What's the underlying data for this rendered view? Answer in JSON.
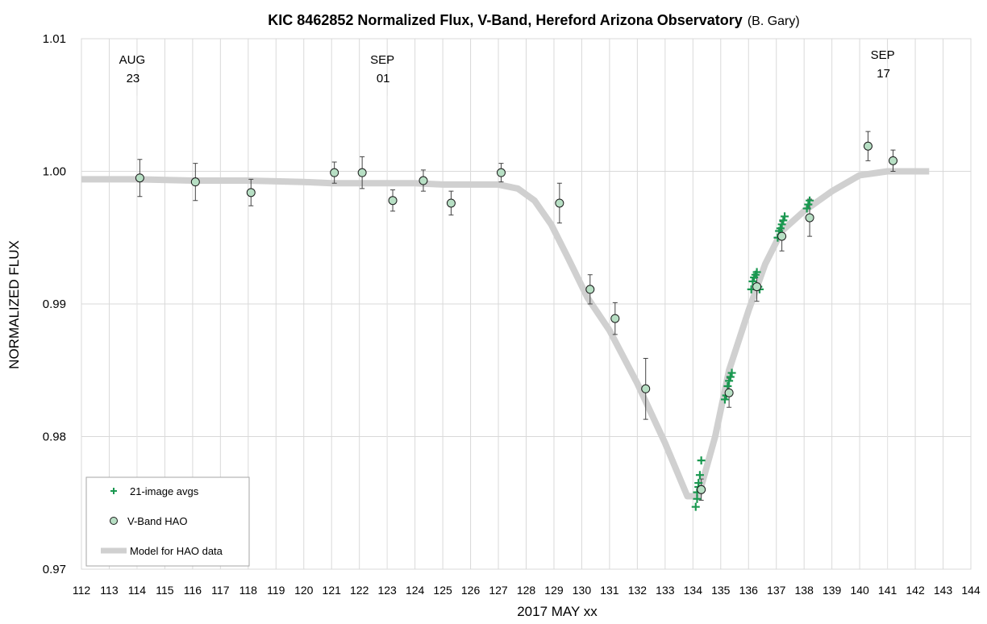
{
  "chart_data": {
    "type": "scatter",
    "title": "KIC 8462852 Normalized Flux, V-Band, Hereford Arizona Observatory",
    "title_suffix": "(B. Gary)",
    "xlabel": "2017 MAY xx",
    "ylabel": "NORMALIZED FLUX",
    "xlim": [
      112,
      144
    ],
    "ylim": [
      0.97,
      1.01
    ],
    "x_ticks": [
      "112",
      "113",
      "114",
      "115",
      "116",
      "117",
      "118",
      "119",
      "120",
      "121",
      "122",
      "123",
      "124",
      "125",
      "126",
      "127",
      "128",
      "129",
      "130",
      "131",
      "132",
      "133",
      "134",
      "135",
      "136",
      "137",
      "138",
      "139",
      "140",
      "141",
      "142",
      "143",
      "144"
    ],
    "y_ticks": [
      "0.97",
      "0.98",
      "0.99",
      "1.00",
      "1.01"
    ],
    "grid": true,
    "legend_position": "bottom-left",
    "annotations": [
      {
        "top": "AUG",
        "bottom": "23",
        "x": 114
      },
      {
        "top": "SEP",
        "bottom": "01",
        "x": 123
      },
      {
        "top": "SEP",
        "bottom": "17",
        "x": 141
      }
    ],
    "colors": {
      "model": "#d0d0d0",
      "plus": "#1a9850",
      "circle_fill": "#b7dfc4",
      "circle_stroke": "#1a1a1a",
      "grid": "#d9d9d9"
    },
    "series": [
      {
        "name": "21-image avgs",
        "kind": "plus",
        "x": [
          134.1,
          134.15,
          134.2,
          134.25,
          134.3,
          134.15,
          134.2,
          135.15,
          135.2,
          135.25,
          135.3,
          135.35,
          135.4,
          136.1,
          136.15,
          136.2,
          136.25,
          136.3,
          136.35,
          136.4,
          137.05,
          137.1,
          137.15,
          137.2,
          137.25,
          137.3,
          138.1,
          138.15,
          138.2
        ],
        "y": [
          0.9747,
          0.9753,
          0.9765,
          0.9771,
          0.9782,
          0.9758,
          0.9762,
          0.9828,
          0.9831,
          0.9838,
          0.9842,
          0.9845,
          0.9848,
          0.9911,
          0.9917,
          0.992,
          0.9922,
          0.9924,
          0.9913,
          0.9911,
          0.995,
          0.9955,
          0.9957,
          0.996,
          0.9963,
          0.9966,
          0.9972,
          0.9975,
          0.9978
        ]
      },
      {
        "name": "V-Band HAO",
        "kind": "circle",
        "x": [
          114.1,
          116.1,
          118.1,
          121.1,
          122.1,
          123.2,
          124.3,
          125.3,
          127.1,
          129.2,
          130.3,
          131.2,
          132.3,
          134.3,
          135.3,
          136.3,
          137.2,
          138.2,
          140.3,
          141.2
        ],
        "y": [
          0.9995,
          0.9992,
          0.9984,
          0.9999,
          0.9999,
          0.9978,
          0.9993,
          0.9976,
          0.9999,
          0.9976,
          0.9911,
          0.9889,
          0.9836,
          0.976,
          0.9833,
          0.9913,
          0.9951,
          0.9965,
          1.0019,
          1.0008
        ],
        "err": [
          0.0014,
          0.0014,
          0.001,
          0.0008,
          0.0012,
          0.0008,
          0.0008,
          0.0009,
          0.0007,
          0.0015,
          0.0011,
          0.0012,
          0.0023,
          0.0008,
          0.0011,
          0.0011,
          0.0011,
          0.0014,
          0.0011,
          0.0008
        ]
      },
      {
        "name": "Model for HAO data",
        "kind": "line",
        "x": [
          112,
          114,
          116,
          118,
          120,
          121,
          122,
          124,
          125,
          126,
          127,
          127.7,
          128.3,
          128.9,
          129.5,
          130.2,
          131,
          132,
          133,
          133.8,
          134.2,
          134.8,
          135.3,
          136,
          136.6,
          137.2,
          138,
          139,
          140,
          141,
          142,
          142.5
        ],
        "y": [
          0.9994,
          0.9994,
          0.9993,
          0.9993,
          0.9992,
          0.9991,
          0.9991,
          0.9991,
          0.999,
          0.999,
          0.999,
          0.9987,
          0.9978,
          0.996,
          0.9935,
          0.9905,
          0.988,
          0.984,
          0.9795,
          0.9755,
          0.9755,
          0.98,
          0.985,
          0.9895,
          0.993,
          0.9955,
          0.997,
          0.9985,
          0.9997,
          1.0,
          1.0,
          1.0
        ]
      }
    ]
  }
}
